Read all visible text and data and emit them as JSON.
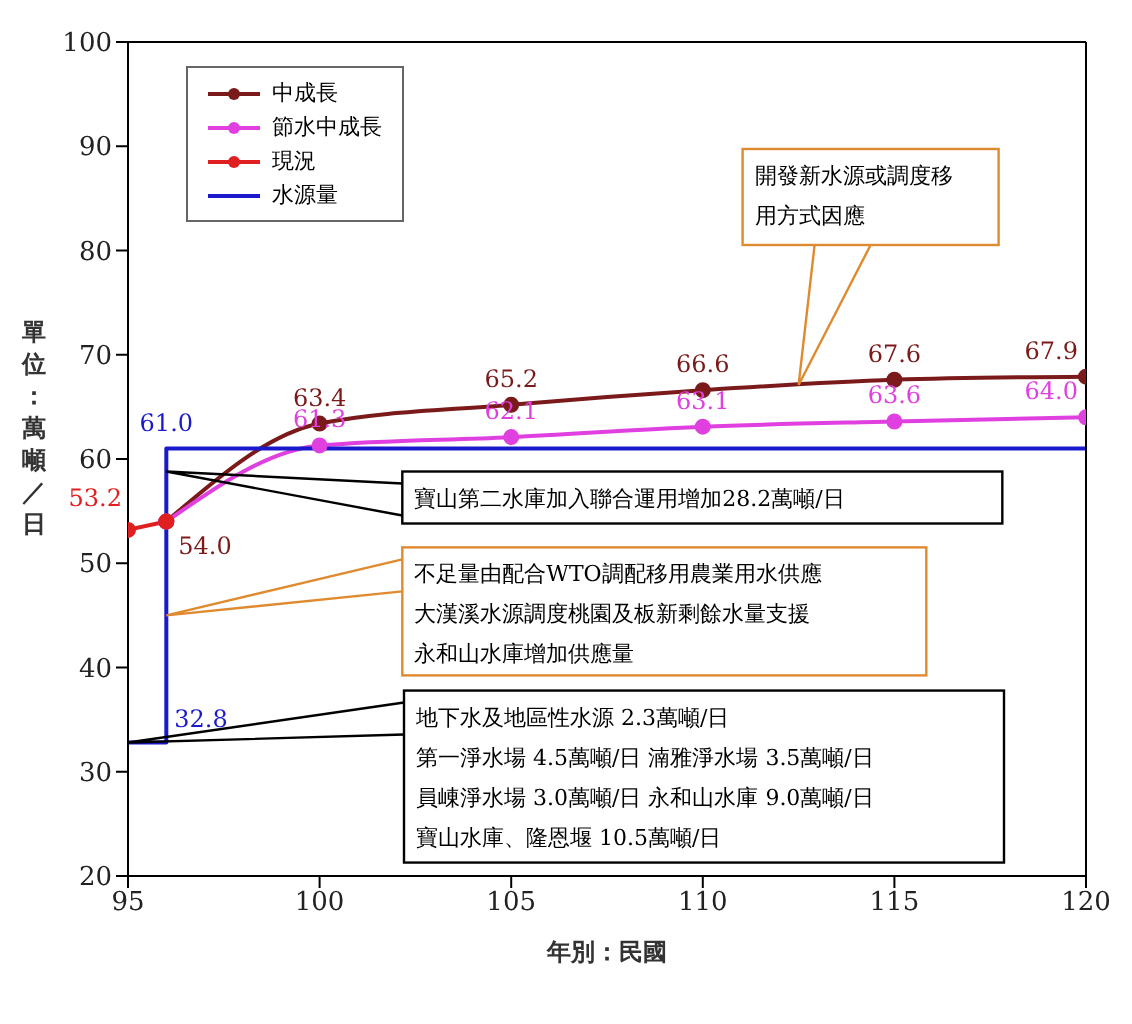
{
  "chart_data": {
    "type": "line",
    "xlabel": "年別：民國",
    "ylabel": "單位：萬噸／日",
    "xlim": [
      95,
      120
    ],
    "xticks": [
      95,
      100,
      105,
      110,
      115,
      120
    ],
    "ylim": [
      20,
      100
    ],
    "yticks": [
      20,
      30,
      40,
      50,
      60,
      70,
      80,
      90,
      100
    ],
    "grid": false,
    "legend": "top left",
    "marker": "circle",
    "line_style": "solid",
    "series": [
      {
        "name": "中成長",
        "color": "#7b1a1a",
        "x": [
          96,
          100,
          105,
          110,
          115,
          120
        ],
        "values": [
          54.0,
          63.4,
          65.2,
          66.6,
          67.6,
          67.9
        ],
        "value_labels": [
          "54.0",
          "63.4",
          "65.2",
          "66.6",
          "67.6",
          "67.9"
        ]
      },
      {
        "name": "節水中成長",
        "color": "#e040e0",
        "x": [
          96,
          100,
          105,
          110,
          115,
          120
        ],
        "values": [
          54.0,
          61.3,
          62.1,
          63.1,
          63.6,
          64.0
        ],
        "value_labels": [
          null,
          "61.3",
          "62.1",
          "63.1",
          "63.6",
          "64.0"
        ]
      },
      {
        "name": "現況",
        "color": "#e02020",
        "x": [
          95,
          96
        ],
        "values": [
          53.2,
          54.0
        ],
        "value_labels": [
          "53.2",
          null
        ]
      },
      {
        "name": "水源量",
        "color": "#1a1acc",
        "marker": "none",
        "x": [
          95,
          96,
          96,
          120
        ],
        "values": [
          32.8,
          32.8,
          61.0,
          61.0
        ],
        "value_labels": [
          null,
          "32.8",
          "61.0",
          null
        ]
      }
    ],
    "annotations": [
      {
        "text": "開發新水源或調度移用方式因應",
        "x": 112.5,
        "y": 67.1
      },
      {
        "text": "寶山第二水庫加入聯合運用增加28.2萬噸/日",
        "x": 96,
        "y": 58.8
      },
      {
        "text": "不足量由配合WTO調配移用農業用水供應大漢溪水源調度桃園及板新剩餘水量支援永和山水庫增加供應量",
        "x": 96,
        "y": 45
      },
      {
        "text": "地下水及地區性水源 2.3萬噸/日",
        "x": 95,
        "y": 32.8
      },
      "第一淨水場 4.5萬噸/日  湳雅淨水場 3.5萬噸/日",
      "員崠淨水場 3.0萬噸/日  永和山水庫 9.0萬噸/日",
      "寶山水庫、隆恩堰 10.5萬噸/日"
    ]
  }
}
